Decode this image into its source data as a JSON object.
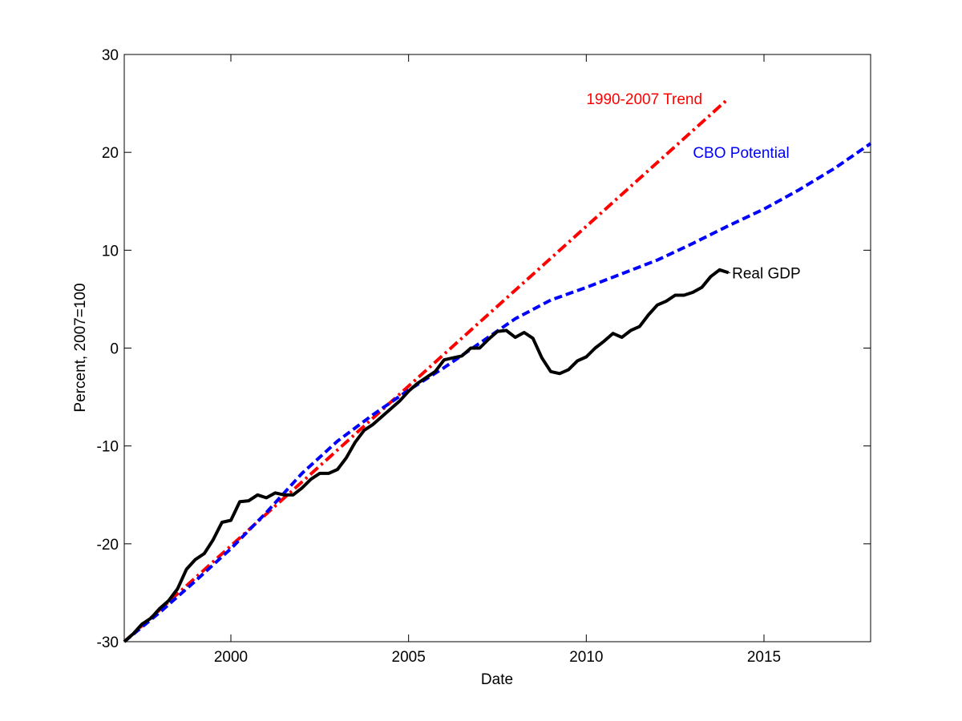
{
  "chart_data": {
    "type": "line",
    "title": "",
    "xlabel": "Date",
    "ylabel": "Percent, 2007=100",
    "xlim": [
      1997.0,
      2018.0
    ],
    "ylim": [
      -30,
      30
    ],
    "xticks": [
      2000,
      2005,
      2010,
      2015
    ],
    "yticks": [
      -30,
      -20,
      -10,
      0,
      10,
      20,
      30
    ],
    "grid": false,
    "legend": "inline labels",
    "series": [
      {
        "name": "Real GDP",
        "label": "Real GDP",
        "color": "#000000",
        "style": "solid",
        "x": [
          1997.0,
          1997.25,
          1997.5,
          1997.75,
          1998.0,
          1998.25,
          1998.5,
          1998.75,
          1999.0,
          1999.25,
          1999.5,
          1999.75,
          2000.0,
          2000.25,
          2000.5,
          2000.75,
          2001.0,
          2001.25,
          2001.5,
          2001.75,
          2002.0,
          2002.25,
          2002.5,
          2002.75,
          2003.0,
          2003.25,
          2003.5,
          2003.75,
          2004.0,
          2004.25,
          2004.5,
          2004.75,
          2005.0,
          2005.25,
          2005.5,
          2005.75,
          2006.0,
          2006.25,
          2006.5,
          2006.75,
          2007.0,
          2007.25,
          2007.5,
          2007.75,
          2008.0,
          2008.25,
          2008.5,
          2008.75,
          2009.0,
          2009.25,
          2009.5,
          2009.75,
          2010.0,
          2010.25,
          2010.5,
          2010.75,
          2011.0,
          2011.25,
          2011.5,
          2011.75,
          2012.0,
          2012.25,
          2012.5,
          2012.75,
          2013.0,
          2013.25,
          2013.5,
          2013.75,
          2014.0
        ],
        "values": [
          -30.0,
          -29.2,
          -28.2,
          -27.6,
          -26.6,
          -25.8,
          -24.6,
          -22.6,
          -21.6,
          -21.0,
          -19.6,
          -17.8,
          -17.6,
          -15.7,
          -15.6,
          -15.0,
          -15.3,
          -14.8,
          -15.0,
          -15.0,
          -14.3,
          -13.4,
          -12.8,
          -12.8,
          -12.4,
          -11.2,
          -9.6,
          -8.4,
          -7.8,
          -7.0,
          -6.2,
          -5.4,
          -4.4,
          -3.6,
          -3.0,
          -2.4,
          -1.2,
          -1.0,
          -0.8,
          0.0,
          0.0,
          0.9,
          1.7,
          1.8,
          1.1,
          1.6,
          1.0,
          -1.0,
          -2.4,
          -2.6,
          -2.2,
          -1.3,
          -0.9,
          0.0,
          0.7,
          1.5,
          1.1,
          1.8,
          2.2,
          3.4,
          4.4,
          4.8,
          5.4,
          5.4,
          5.7,
          6.2,
          7.3,
          8.0,
          7.7
        ]
      },
      {
        "name": "CBO Potential",
        "label": "CBO Potential",
        "color": "#0000ff",
        "style": "dashed",
        "x": [
          1997.0,
          1998.0,
          1999.0,
          2000.0,
          2001.0,
          2002.0,
          2003.0,
          2004.0,
          2005.0,
          2006.0,
          2007.0,
          2008.0,
          2009.0,
          2010.0,
          2011.0,
          2012.0,
          2013.0,
          2014.0,
          2015.0,
          2016.0,
          2017.0,
          2018.0
        ],
        "values": [
          -30.0,
          -27.0,
          -23.8,
          -20.5,
          -16.8,
          -12.8,
          -9.5,
          -6.8,
          -4.3,
          -2.0,
          0.5,
          3.0,
          4.9,
          6.2,
          7.6,
          9.0,
          10.7,
          12.5,
          14.2,
          16.2,
          18.4,
          20.9
        ]
      },
      {
        "name": "1990-2007 Trend",
        "label": "1990-2007 Trend",
        "color": "#ff0000",
        "style": "dashdot",
        "x": [
          1997.0,
          2014.0
        ],
        "values": [
          -30.0,
          25.5
        ]
      }
    ],
    "annotations": [
      {
        "text": "1990-2007 Trend",
        "series": "1990-2007 Trend",
        "x": 2010.0,
        "y": 25.5,
        "anchor": "start",
        "color": "#ff0000"
      },
      {
        "text": "CBO Potential",
        "series": "CBO Potential",
        "x": 2013.0,
        "y": 20.0,
        "anchor": "start",
        "color": "#0000ff"
      },
      {
        "text": "Real GDP",
        "series": "Real GDP",
        "x": 2014.1,
        "y": 7.7,
        "anchor": "start",
        "color": "#000000"
      }
    ]
  }
}
